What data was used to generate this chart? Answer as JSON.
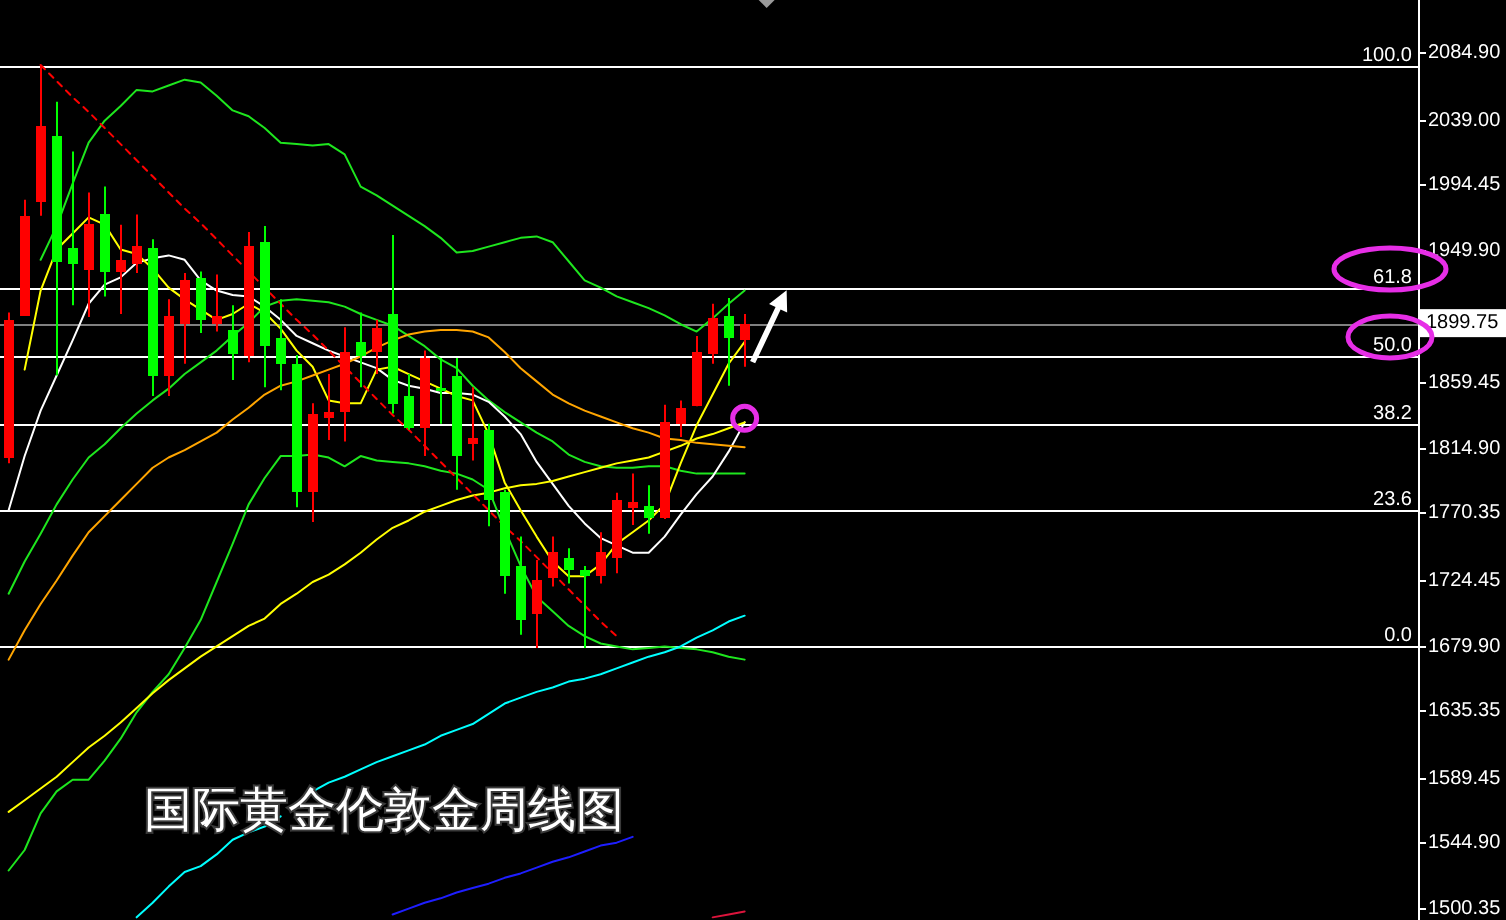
{
  "chart_data": {
    "type": "candlestick",
    "title": "国际黄金伦敦金周线图",
    "categories": [
      null,
      null,
      null,
      null,
      null,
      null,
      null,
      null,
      null,
      null,
      null,
      null,
      null,
      null,
      null,
      null,
      null,
      null,
      null,
      null,
      null,
      null,
      null,
      null,
      null,
      null,
      null,
      null,
      null,
      null,
      null,
      null,
      null,
      null,
      null,
      null,
      null,
      null,
      null,
      null,
      null,
      null,
      null,
      null,
      null,
      null,
      null
    ],
    "ohlc": [
      [
        1809,
        1907,
        1804,
        1902
      ],
      [
        1906,
        1984,
        1905,
        1973
      ],
      [
        1984,
        2076,
        1973,
        2035
      ],
      [
        2027,
        2051,
        1864,
        1943
      ],
      [
        1951,
        2017,
        1912,
        1941
      ],
      [
        1937,
        1989,
        1904,
        1968
      ],
      [
        1974,
        1993,
        1918,
        1936
      ],
      [
        1936,
        1967,
        1906,
        1943
      ],
      [
        1941,
        1974,
        1934,
        1952
      ],
      [
        1951,
        1957,
        1850,
        1865
      ],
      [
        1865,
        1916,
        1850,
        1905
      ],
      [
        1901,
        1934,
        1872,
        1929
      ],
      [
        1930,
        1935,
        1893,
        1903
      ],
      [
        1900,
        1933,
        1894,
        1904
      ],
      [
        1895,
        1912,
        1861,
        1880
      ],
      [
        1878,
        1962,
        1873,
        1952
      ],
      [
        1955,
        1966,
        1856,
        1886
      ],
      [
        1889,
        1916,
        1854,
        1873
      ],
      [
        1872,
        1878,
        1774,
        1786
      ],
      [
        1786,
        1845,
        1764,
        1838
      ],
      [
        1837,
        1865,
        1820,
        1839
      ],
      [
        1840,
        1897,
        1819,
        1880
      ],
      [
        1887,
        1907,
        1856,
        1878
      ],
      [
        1881,
        1902,
        1865,
        1897
      ],
      [
        1906,
        1960,
        1838,
        1846
      ],
      [
        1850,
        1865,
        1827,
        1829
      ],
      [
        1829,
        1881,
        1809,
        1876
      ],
      [
        1856,
        1876,
        1831,
        1855
      ],
      [
        1863,
        1876,
        1786,
        1811
      ],
      [
        1819,
        1856,
        1806,
        1821
      ],
      [
        1827,
        1831,
        1761,
        1780
      ],
      [
        1784,
        1786,
        1715,
        1728
      ],
      [
        1734,
        1754,
        1687,
        1699
      ],
      [
        1702,
        1738,
        1678,
        1725
      ],
      [
        1727,
        1754,
        1720,
        1743
      ],
      [
        1739,
        1746,
        1722,
        1732
      ],
      [
        1731,
        1734,
        1678,
        1729
      ],
      [
        1728,
        1757,
        1722,
        1744
      ],
      [
        1741,
        1784,
        1729,
        1779
      ],
      [
        1775,
        1797,
        1762,
        1777
      ],
      [
        1775,
        1789,
        1756,
        1768
      ],
      [
        1768,
        1844,
        1766,
        1832
      ],
      [
        1832,
        1847,
        1822,
        1842
      ],
      [
        1845,
        1891,
        1843,
        1880
      ],
      [
        1880,
        1913,
        1872,
        1903
      ],
      [
        1904,
        1917,
        1857,
        1891
      ],
      [
        1889,
        1906,
        1870,
        1899.75
      ]
    ],
    "colors": [
      "#ff0000",
      "#ff0000",
      "#ff0000",
      "#00ff00",
      "#00ff00",
      "#ff0000",
      "#00ff00",
      "#ff0000",
      "#ff0000",
      "#00ff00",
      "#ff0000",
      "#ff0000",
      "#00ff00",
      "#ff0000",
      "#00ff00",
      "#ff0000",
      "#00ff00",
      "#00ff00",
      "#00ff00",
      "#ff0000",
      "#ff0000",
      "#ff0000",
      "#00ff00",
      "#ff0000",
      "#00ff00",
      "#00ff00",
      "#ff0000",
      "#00ff00",
      "#00ff00",
      "#ff0000",
      "#00ff00",
      "#00ff00",
      "#00ff00",
      "#ff0000",
      "#ff0000",
      "#00ff00",
      "#00ff00",
      "#ff0000",
      "#ff0000",
      "#ff0000",
      "#00ff00",
      "#ff0000",
      "#ff0000",
      "#ff0000",
      "#ff0000",
      "#00ff00",
      "#ff0000"
    ],
    "series": [
      {
        "type": "line",
        "color": "#1ee61e",
        "values": [
          null,
          null,
          1943,
          1966,
          1995,
          2023,
          2038,
          2048,
          2059,
          2058,
          2062,
          2066,
          2064,
          2055,
          2045,
          2041,
          2033,
          2023,
          2022,
          2021,
          2022,
          2015,
          1993,
          1987,
          1980,
          1973,
          1966,
          1958,
          1948,
          1949,
          1952,
          1955,
          1958,
          1959,
          1955,
          1942,
          1929,
          1924,
          1918,
          1914,
          1910,
          1905,
          1899,
          1894,
          1903,
          1913,
          1922
        ]
      },
      {
        "type": "line",
        "color": "#1ee61e",
        "values": [
          1715,
          1737,
          1756,
          1776,
          1793,
          1808,
          1817,
          1828,
          1838,
          1847,
          1855,
          1865,
          1873,
          1881,
          1891,
          1900,
          1911,
          1915,
          1916,
          1915,
          1914,
          1911,
          1906,
          1902,
          1898,
          1891,
          1884,
          1875,
          1869,
          1857,
          1847,
          1839,
          1832,
          1825,
          1819,
          1810,
          1805,
          1802,
          1801,
          1801,
          1802,
          1802,
          1799,
          1797,
          1797,
          1797,
          1797
        ]
      },
      {
        "type": "line",
        "color": "#1ee61e",
        "values": [
          1526,
          1540,
          1565,
          1580,
          1588,
          1588,
          1601,
          1616,
          1634,
          1648,
          1660,
          1678,
          1697,
          1723,
          1749,
          1776,
          1794,
          1809,
          1809,
          1810,
          1808,
          1802,
          1809,
          1806,
          1805,
          1804,
          1802,
          1799,
          1797,
          1793,
          1786,
          1759,
          1734,
          1713,
          1703,
          1693,
          1686,
          1681,
          1679,
          1677,
          1678,
          1679,
          1678,
          1677,
          1675,
          1672,
          1670
        ]
      },
      {
        "type": "line",
        "color": "#ffffff",
        "values": [
          1772,
          1809,
          1840,
          1864,
          1888,
          1913,
          1926,
          1931,
          1941,
          1944,
          1946,
          1943,
          1929,
          1922,
          1919,
          1918,
          1911,
          1902,
          1891,
          1886,
          1881,
          1877,
          1873,
          1869,
          1861,
          1857,
          1855,
          1852,
          1852,
          1851,
          1846,
          1836,
          1824,
          1805,
          1790,
          1775,
          1763,
          1753,
          1748,
          1743,
          1743,
          1754,
          1769,
          1783,
          1795,
          1812,
          1832
        ]
      },
      {
        "type": "line",
        "color": "#ffff00",
        "values": [
          null,
          1868,
          1922,
          1950,
          1961,
          1972,
          1967,
          1950,
          1947,
          1937,
          1924,
          1916,
          1909,
          1902,
          1906,
          1913,
          1907,
          1896,
          1881,
          1870,
          1847,
          1845,
          1845,
          1868,
          1870,
          1865,
          1860,
          1855,
          1850,
          1847,
          1824,
          1791,
          1772,
          1754,
          1737,
          1727,
          1727,
          1735,
          1749,
          1757,
          1765,
          1776,
          1804,
          1830,
          1851,
          1872,
          1887
        ]
      },
      {
        "type": "line",
        "color": "#ffff00",
        "values": [
          1566,
          1574,
          1582,
          1590,
          1600,
          1610,
          1618,
          1627,
          1637,
          1647,
          1656,
          1664,
          1672,
          1679,
          1686,
          1693,
          1698,
          1708,
          1715,
          1723,
          1728,
          1735,
          1743,
          1752,
          1760,
          1765,
          1771,
          1775,
          1779,
          1782,
          1784,
          1787,
          1789,
          1790,
          1792,
          1795,
          1798,
          1801,
          1804,
          1806,
          1808,
          1812,
          1816,
          1821,
          1824,
          1828,
          1832
        ]
      },
      {
        "type": "line",
        "color": "#ffa500",
        "values": [
          1670,
          1690,
          1708,
          1724,
          1741,
          1757,
          1768,
          1779,
          1790,
          1801,
          1808,
          1813,
          1819,
          1825,
          1834,
          1842,
          1851,
          1857,
          1860,
          1864,
          1868,
          1872,
          1877,
          1883,
          1888,
          1892,
          1894,
          1895,
          1895,
          1894,
          1890,
          1880,
          1869,
          1860,
          1851,
          1845,
          1840,
          1836,
          1832,
          1828,
          1825,
          1821,
          1820,
          1818,
          1817,
          1816,
          1815
        ]
      },
      {
        "type": "line",
        "color": "#00ffff",
        "values": [
          null,
          null,
          null,
          null,
          null,
          null,
          null,
          null,
          1494,
          1504,
          1515,
          1525,
          1529,
          1537,
          1547,
          1552,
          1556,
          1563,
          null,
          1580,
          1586,
          1590,
          1595,
          1600,
          1604,
          1608,
          1612,
          1618,
          1622,
          1626,
          1633,
          1640,
          1644,
          1648,
          1651,
          1655,
          1657,
          1660,
          1664,
          1668,
          1672,
          1675,
          1679,
          1685,
          1690,
          1696,
          1700
        ]
      },
      {
        "type": "line",
        "color": "#1e1eff",
        "values": [
          null,
          null,
          null,
          null,
          null,
          null,
          null,
          null,
          null,
          null,
          null,
          null,
          null,
          null,
          null,
          null,
          null,
          null,
          null,
          null,
          null,
          null,
          null,
          null,
          1496,
          1500,
          1504,
          1507,
          1511,
          1514,
          1517,
          1521,
          1524,
          1528,
          1532,
          1535,
          1539,
          1543,
          1545,
          1549,
          null,
          null,
          null,
          null,
          null,
          null,
          null
        ]
      },
      {
        "type": "line",
        "color": "#dc143c",
        "values": [
          null,
          null,
          null,
          null,
          null,
          null,
          null,
          null,
          null,
          null,
          null,
          null,
          null,
          null,
          null,
          null,
          null,
          null,
          null,
          null,
          null,
          null,
          null,
          null,
          null,
          null,
          null,
          null,
          null,
          null,
          null,
          null,
          null,
          null,
          null,
          null,
          null,
          null,
          null,
          null,
          null,
          null,
          null,
          null,
          1494,
          1496,
          1498
        ]
      },
      {
        "type": "line",
        "color": "#ff0000",
        "line_style": "dashed",
        "values": [
          null,
          null,
          2076,
          2065,
          2054,
          2044,
          2033,
          2022,
          2011,
          2000,
          1989,
          1978,
          1968,
          1957,
          1946,
          1935,
          1924,
          1913,
          1902,
          1892,
          1881,
          1870,
          1859,
          1848,
          1837,
          1827,
          1816,
          1805,
          1794,
          1783,
          1772,
          1761,
          1751,
          1740,
          1729,
          1718,
          1707,
          1696,
          1686,
          null,
          null,
          null,
          null,
          null,
          null,
          null,
          null
        ]
      }
    ],
    "ylim": [
      1492.2,
      2120.4
    ],
    "yticks": [
      {
        "value": 2084.9,
        "label": "2084.90"
      },
      {
        "value": 2039,
        "label": "2039.00"
      },
      1994.45,
      {
        "value": 1949.9,
        "label": "1949.90"
      },
      {
        "value": 1905.35,
        "label": null
      },
      1859.45,
      {
        "value": 1814.9,
        "label": "1814.90"
      },
      1770.35,
      1724.45,
      {
        "value": 1679.9,
        "label": "1679.90"
      },
      1635.35,
      1589.45,
      {
        "value": 1544.9,
        "label": "1544.90"
      },
      1500.35
    ],
    "tick_labels": "y",
    "ref_lines": [
      {
        "axis": "y",
        "value": 2076,
        "color": "#ffffff"
      },
      {
        "axis": "y",
        "value": 1924,
        "color": "#ffffff"
      },
      {
        "axis": "y",
        "value": 1877,
        "color": "#ffffff"
      },
      {
        "axis": "y",
        "value": 1831,
        "color": "#ffffff"
      },
      {
        "axis": "y",
        "value": 1772,
        "color": "#ffffff"
      },
      {
        "axis": "y",
        "value": 1679,
        "color": "#ffffff"
      },
      {
        "axis": "y",
        "value": 1899.75,
        "label": "1899.75",
        "color": "#808080"
      }
    ],
    "annotations": [
      "100.0",
      "61.8",
      "50.0",
      "38.2",
      "23.6",
      "0.0"
    ]
  }
}
